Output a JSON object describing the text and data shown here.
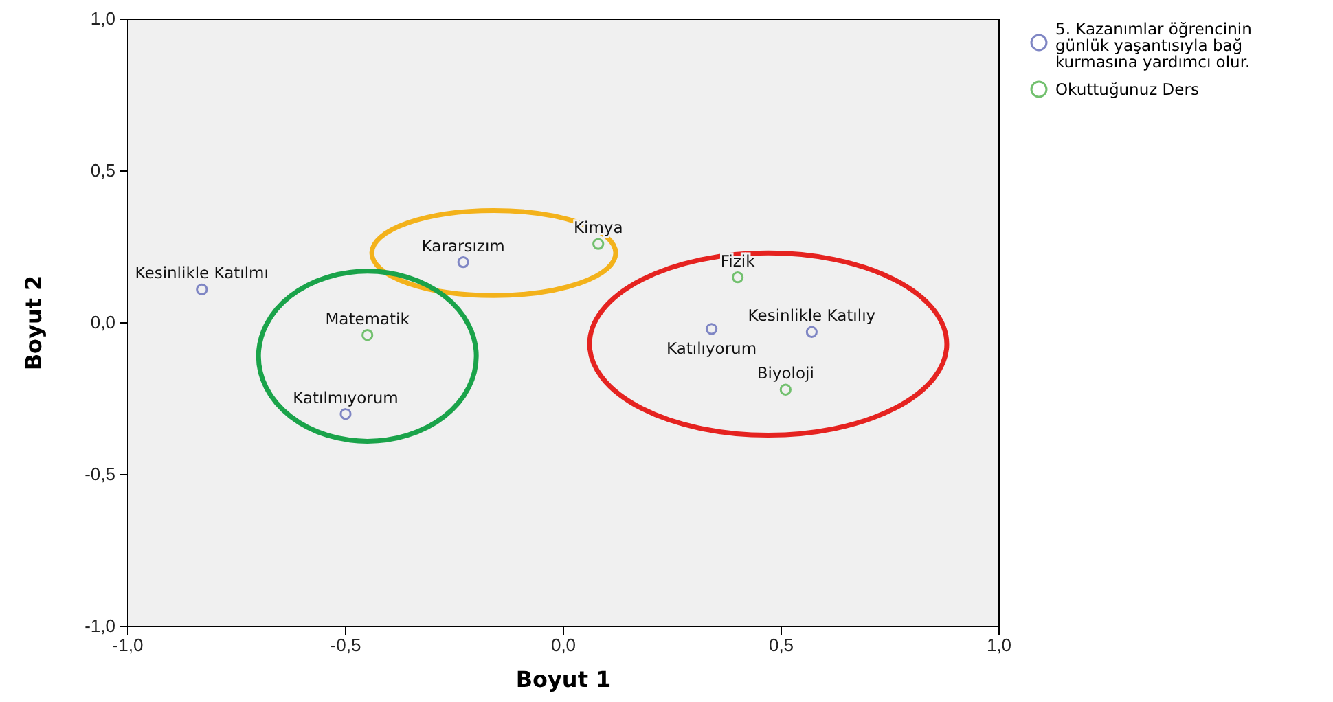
{
  "chart_data": {
    "type": "scatter",
    "xlabel": "Boyut 1",
    "ylabel": "Boyut 2",
    "xlim": [
      -1,
      1
    ],
    "ylim": [
      -1,
      1
    ],
    "xticks": [
      {
        "value": -1,
        "label": "-1,0"
      },
      {
        "value": -0.5,
        "label": "-0,5"
      },
      {
        "value": 0,
        "label": "0,0"
      },
      {
        "value": 0.5,
        "label": "0,5"
      },
      {
        "value": 1,
        "label": "1,0"
      }
    ],
    "yticks": [
      {
        "value": -1,
        "label": "-1,0"
      },
      {
        "value": -0.5,
        "label": "-0,5"
      },
      {
        "value": 0,
        "label": "0,0"
      },
      {
        "value": 0.5,
        "label": "0,5"
      },
      {
        "value": 1,
        "label": "1,0"
      }
    ],
    "grid": false,
    "legend": "top right",
    "marker": "circle",
    "series": [
      {
        "name": "5. Kazanımlar öğrencinin günlük yaşantısıyla bağ kurmasına yardımcı olur.",
        "color": "#7f86c4",
        "x": [
          -0.83,
          -0.23,
          -0.5,
          0.34,
          0.57
        ],
        "values": [
          0.11,
          0.2,
          -0.3,
          -0.02,
          -0.03
        ]
      },
      {
        "name": "Okuttuğunuz Ders",
        "color": "#72c06e",
        "x": [
          0.08,
          0.4,
          -0.45,
          0.51
        ],
        "values": [
          0.26,
          0.15,
          -0.04,
          -0.22
        ]
      }
    ],
    "annotations": [
      {
        "text": "Kesinlikle Katılmı",
        "x": -0.83,
        "y": 0.11
      },
      {
        "text": "Kararsızım",
        "x": -0.23,
        "y": 0.2
      },
      {
        "text": "Katılmıyorum",
        "x": -0.5,
        "y": -0.3
      },
      {
        "text": "Katılıyorum",
        "x": 0.34,
        "y": -0.02
      },
      {
        "text": "Kesinlikle Katılıy",
        "x": 0.57,
        "y": -0.03
      },
      {
        "text": "Kimya",
        "x": 0.08,
        "y": 0.26
      },
      {
        "text": "Fizik",
        "x": 0.4,
        "y": 0.15
      },
      {
        "text": "Matematik",
        "x": -0.45,
        "y": -0.04
      },
      {
        "text": "Biyoloji",
        "x": 0.51,
        "y": -0.22
      }
    ]
  }
}
